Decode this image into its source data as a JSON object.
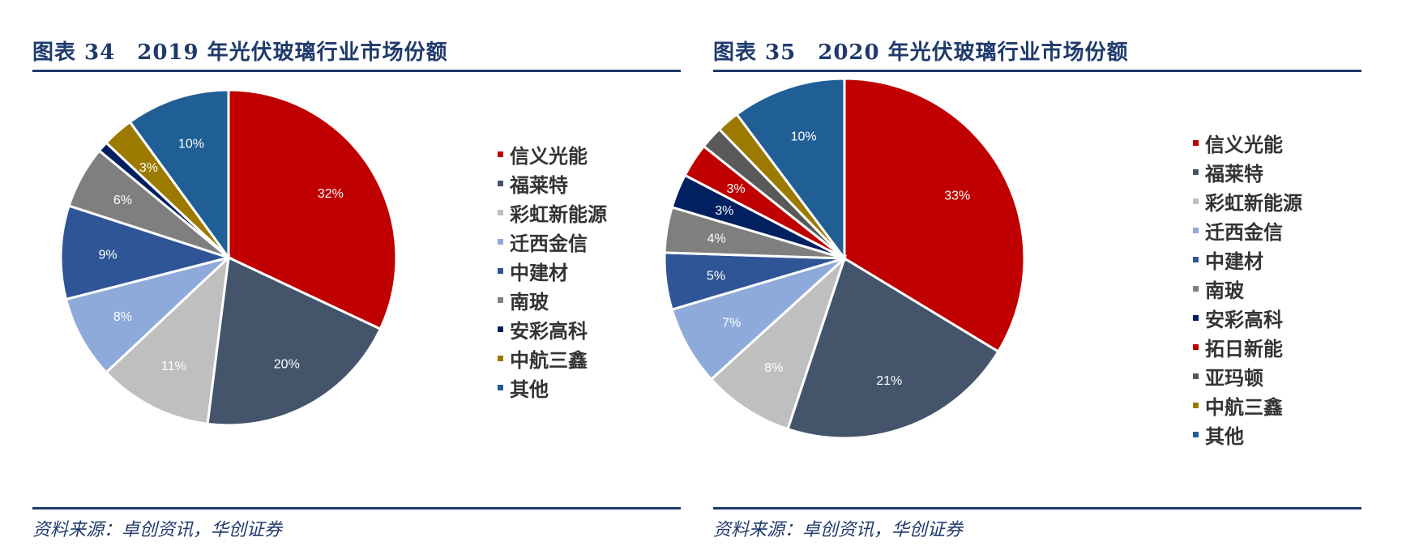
{
  "charts": [
    {
      "title": "图表 34　2019 年光伏玻璃行业市场份额",
      "source": "资料来源：卓创资讯，华创证券",
      "chart_data": {
        "type": "pie",
        "title": "图表 34　2019 年光伏玻璃行业市场份额",
        "legend_position": "right",
        "start_angle_deg": 0,
        "slices": [
          {
            "name": "信义光能",
            "value": 32,
            "label": "32%",
            "color": "#c00000"
          },
          {
            "name": "福莱特",
            "value": 20,
            "label": "20%",
            "color": "#44546a"
          },
          {
            "name": "彩虹新能源",
            "value": 11,
            "label": "11%",
            "color": "#bfbfbf"
          },
          {
            "name": "迁西金信",
            "value": 8,
            "label": "8%",
            "color": "#8eaadb"
          },
          {
            "name": "中建材",
            "value": 9,
            "label": "9%",
            "color": "#2f5597"
          },
          {
            "name": "南玻",
            "value": 6,
            "label": "6%",
            "color": "#7f7f7f"
          },
          {
            "name": "安彩高科",
            "value": 1,
            "label": "",
            "color": "#002060"
          },
          {
            "name": "中航三鑫",
            "value": 3,
            "label": "3%",
            "color": "#9c7a00"
          },
          {
            "name": "其他",
            "value": 10,
            "label": "10%",
            "color": "#1f5f95"
          }
        ]
      }
    },
    {
      "title": "图表 35　2020 年光伏玻璃行业市场份额",
      "source": "资料来源：卓创资讯，华创证券",
      "chart_data": {
        "type": "pie",
        "title": "图表 35　2020 年光伏玻璃行业市场份额",
        "legend_position": "right",
        "start_angle_deg": 0,
        "slices": [
          {
            "name": "信义光能",
            "value": 33,
            "label": "33%",
            "color": "#c00000"
          },
          {
            "name": "福莱特",
            "value": 21,
            "label": "21%",
            "color": "#44546a"
          },
          {
            "name": "彩虹新能源",
            "value": 8,
            "label": "8%",
            "color": "#bfbfbf"
          },
          {
            "name": "迁西金信",
            "value": 7,
            "label": "7%",
            "color": "#8eaadb"
          },
          {
            "name": "中建材",
            "value": 5,
            "label": "5%",
            "color": "#2f5597"
          },
          {
            "name": "南玻",
            "value": 4,
            "label": "4%",
            "color": "#7f7f7f"
          },
          {
            "name": "安彩高科",
            "value": 3,
            "label": "3%",
            "color": "#002060"
          },
          {
            "name": "拓日新能",
            "value": 3,
            "label": "3%",
            "color": "#c00000"
          },
          {
            "name": "亚玛顿",
            "value": 2,
            "label": "",
            "color": "#595959"
          },
          {
            "name": "中航三鑫",
            "value": 2,
            "label": "",
            "color": "#9c7a00"
          },
          {
            "name": "其他",
            "value": 10,
            "label": "10%",
            "color": "#1f5f95"
          }
        ]
      }
    }
  ]
}
